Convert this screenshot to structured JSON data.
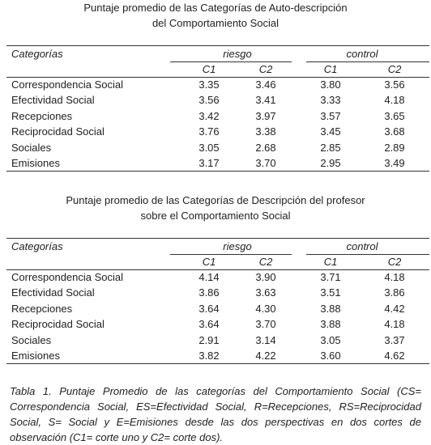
{
  "tables": [
    {
      "title": [
        "Puntaje promedio de las Categorías de Auto-descripción",
        "del Comportamiento Social"
      ],
      "category_label": "Categorías",
      "groups": [
        "riesgo",
        "control"
      ],
      "subcolumns": [
        "C1",
        "C2",
        "C1",
        "C2"
      ],
      "rows": [
        [
          "Correspondencia Social",
          "3.35",
          "3.46",
          "3.80",
          "3.56"
        ],
        [
          "Efectividad Social",
          "3.56",
          "3.41",
          "3.33",
          "4.18"
        ],
        [
          "Recepciones",
          "3.42",
          "3.97",
          "3.57",
          "3.65"
        ],
        [
          "Reciprocidad Social",
          "3.76",
          "3.38",
          "3.45",
          "3.68"
        ],
        [
          "Sociales",
          "3.05",
          "2.68",
          "2.85",
          "2.89"
        ],
        [
          "Emisiones",
          "3.17",
          "3.70",
          "2.95",
          "3.49"
        ]
      ]
    },
    {
      "title": [
        "Puntaje promedio de las Categorías de Descripción del profesor",
        "sobre el Comportamiento Social"
      ],
      "category_label": "Categorías",
      "groups": [
        "riesgo",
        "control"
      ],
      "subcolumns": [
        "C1",
        "C2",
        "C1",
        "C2"
      ],
      "rows": [
        [
          "Correspondencia Social",
          "4.14",
          "3.90",
          "3.71",
          "4.18"
        ],
        [
          "Efectividad Social",
          "3.86",
          "3.63",
          "3.51",
          "3.86"
        ],
        [
          "Recepciones",
          "3.64",
          "4.30",
          "3.88",
          "4.42"
        ],
        [
          "Reciprocidad Social",
          "3.64",
          "3.70",
          "3.88",
          "4.18"
        ],
        [
          "Sociales",
          "2.91",
          "3.14",
          "3.05",
          "3.37"
        ],
        [
          "Emisiones",
          "3.82",
          "4.22",
          "3.60",
          "4.62"
        ]
      ]
    }
  ],
  "caption": "Tabla 1. Puntaje Promedio de las categorías del Comportamiento Social (CS= Correspondencia Social, ES=Efectividad Social, R=Recepciones, RS=Reciprocidad Social, S= Social y E=Emisiones desde las dos perspectivas en dos cortes de observación (C1= corte uno y C2= corte dos)."
}
